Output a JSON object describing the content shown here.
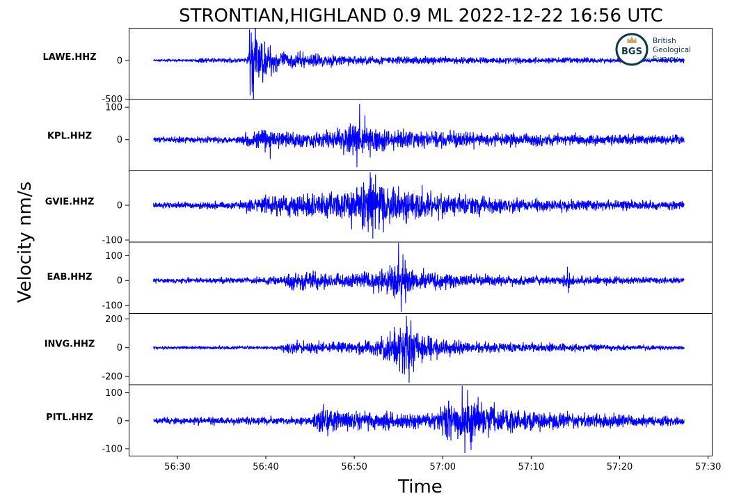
{
  "chart_data": {
    "type": "line",
    "title": "STRONTIAN,HIGHLAND 0.9 ML   2022-12-22 16:56 UTC",
    "xlabel": "Time",
    "ylabel": "Velocity nm/s",
    "x_ticks": [
      "56:30",
      "56:40",
      "56:50",
      "57:00",
      "57:10",
      "57:20",
      "57:30"
    ],
    "x_tick_seconds": [
      30,
      40,
      50,
      60,
      70,
      80,
      90
    ],
    "xlim_seconds": [
      24.5,
      90.5
    ],
    "trace_start_seconds": 27.3,
    "trace_end_seconds": 87.3,
    "line_color": "#0000ff",
    "grid": false,
    "logo": {
      "initials": "BGS",
      "lines": [
        "British",
        "Geological",
        "Survey"
      ],
      "ring_color": "#0b3b4a",
      "crown_color": "#c9a96b"
    },
    "series": [
      {
        "name": "LAWE.HHZ",
        "ylim": [
          -500,
          420
        ],
        "y_ticks": [
          0,
          -500
        ],
        "y_tick_labels": [
          "0",
          "-500"
        ],
        "noise": 8,
        "envelope": [
          [
            27.3,
            1
          ],
          [
            32.0,
            1
          ],
          [
            32.5,
            2.5
          ],
          [
            37.8,
            2.5
          ],
          [
            38.2,
            14
          ],
          [
            38.6,
            45
          ],
          [
            39.5,
            22
          ],
          [
            42,
            9
          ],
          [
            50,
            5
          ],
          [
            60,
            4
          ],
          [
            87.3,
            2.5
          ]
        ],
        "peaks": [
          [
            38.15,
            400
          ],
          [
            38.22,
            -450
          ],
          [
            38.35,
            360
          ],
          [
            38.5,
            -300
          ],
          [
            38.8,
            220
          ]
        ]
      },
      {
        "name": "KPL.HHZ",
        "ylim": [
          -95,
          125
        ],
        "y_ticks": [
          100,
          0
        ],
        "y_tick_labels": [
          "100",
          "0"
        ],
        "noise": 4,
        "envelope": [
          [
            27.3,
            1.5
          ],
          [
            37,
            1.8
          ],
          [
            38,
            4
          ],
          [
            40,
            5.5
          ],
          [
            45,
            4
          ],
          [
            48,
            5
          ],
          [
            50,
            9
          ],
          [
            52,
            6
          ],
          [
            57,
            4.5
          ],
          [
            65,
            3.5
          ],
          [
            75,
            3
          ],
          [
            87.3,
            2.2
          ]
        ],
        "peaks": [
          [
            40.5,
            -60
          ],
          [
            50.6,
            110
          ],
          [
            50.3,
            -85
          ],
          [
            51.2,
            75
          ],
          [
            51.8,
            -55
          ]
        ]
      },
      {
        "name": "GVIE.HHZ",
        "ylim": [
          -105,
          100
        ],
        "y_ticks": [
          0,
          -100
        ],
        "y_tick_labels": [
          "0",
          "-100"
        ],
        "noise": 4,
        "envelope": [
          [
            27.3,
            1.5
          ],
          [
            37,
            1.8
          ],
          [
            38,
            3.5
          ],
          [
            42,
            5.5
          ],
          [
            48,
            7
          ],
          [
            51.5,
            12
          ],
          [
            54,
            9
          ],
          [
            58,
            6.5
          ],
          [
            63,
            5
          ],
          [
            70,
            3
          ],
          [
            87.3,
            2
          ]
        ],
        "peaks": [
          [
            51.8,
            95
          ],
          [
            52.1,
            -96
          ],
          [
            52.4,
            88
          ],
          [
            52.8,
            -70
          ],
          [
            53.3,
            -78
          ],
          [
            55,
            55
          ]
        ]
      },
      {
        "name": "EAB.HHZ",
        "ylim": [
          -130,
          155
        ],
        "y_ticks": [
          100,
          0,
          -100
        ],
        "y_tick_labels": [
          "100",
          "0",
          "-100"
        ],
        "noise": 4,
        "envelope": [
          [
            27.3,
            1.5
          ],
          [
            42,
            2.5
          ],
          [
            43,
            6
          ],
          [
            47,
            4.5
          ],
          [
            52,
            6
          ],
          [
            55,
            13
          ],
          [
            57,
            7
          ],
          [
            62,
            4.5
          ],
          [
            70,
            3
          ],
          [
            73.5,
            3
          ],
          [
            74,
            7
          ],
          [
            74.5,
            3
          ],
          [
            87.3,
            2
          ]
        ],
        "peaks": [
          [
            55,
            150
          ],
          [
            55.3,
            -125
          ],
          [
            55.5,
            105
          ],
          [
            55.8,
            -90
          ],
          [
            74.1,
            55
          ],
          [
            74.2,
            -50
          ]
        ]
      },
      {
        "name": "INVG.HHZ",
        "ylim": [
          -255,
          240
        ],
        "y_ticks": [
          200,
          0,
          -200
        ],
        "y_tick_labels": [
          "200",
          "0",
          "-200"
        ],
        "noise": 6,
        "envelope": [
          [
            27.3,
            1
          ],
          [
            41.5,
            1.5
          ],
          [
            42.5,
            5
          ],
          [
            46,
            4.5
          ],
          [
            50,
            5
          ],
          [
            53,
            7
          ],
          [
            55.5,
            22
          ],
          [
            57,
            12
          ],
          [
            60,
            6
          ],
          [
            66,
            4
          ],
          [
            87.3,
            1.5
          ]
        ],
        "peaks": [
          [
            55.9,
            220
          ],
          [
            56.2,
            -245
          ],
          [
            56.4,
            190
          ],
          [
            56.7,
            -170
          ],
          [
            43,
            -45
          ]
        ]
      },
      {
        "name": "PITL.HHZ",
        "ylim": [
          -125,
          130
        ],
        "y_ticks": [
          100,
          0,
          -100
        ],
        "y_tick_labels": [
          "100",
          "0",
          "-100"
        ],
        "noise": 4,
        "envelope": [
          [
            27.3,
            2
          ],
          [
            45,
            2.5
          ],
          [
            46,
            8
          ],
          [
            49,
            5.5
          ],
          [
            55,
            4.5
          ],
          [
            59,
            6
          ],
          [
            61,
            12
          ],
          [
            63,
            11
          ],
          [
            67,
            7
          ],
          [
            72,
            5
          ],
          [
            87.3,
            3
          ]
        ],
        "peaks": [
          [
            46.5,
            60
          ],
          [
            47,
            -55
          ],
          [
            62.2,
            125
          ],
          [
            62.5,
            -115
          ],
          [
            62.8,
            110
          ],
          [
            63.2,
            -105
          ],
          [
            64,
            85
          ]
        ]
      }
    ]
  }
}
